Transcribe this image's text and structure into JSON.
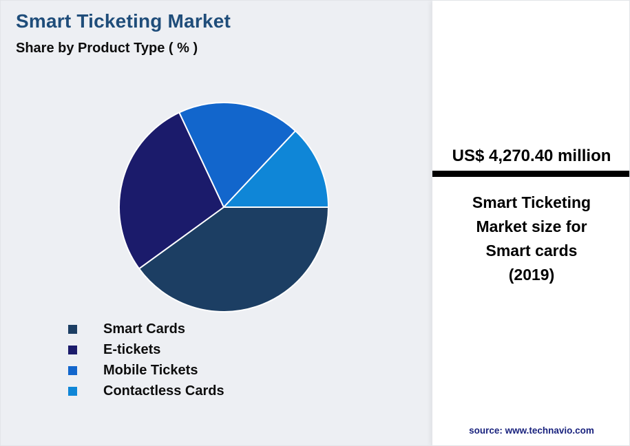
{
  "header": {
    "title": "Smart Ticketing Market",
    "subtitle": "Share by Product Type ( % )"
  },
  "chart_data": {
    "type": "pie",
    "title": "Smart Ticketing Market — Share by Product Type ( % )",
    "categories": [
      "Smart Cards",
      "E-tickets",
      "Mobile Tickets",
      "Contactless Cards"
    ],
    "values": [
      40,
      28,
      19,
      13
    ],
    "colors": [
      "#1c3e63",
      "#1b1b6b",
      "#1266cc",
      "#0f86d7"
    ],
    "start_angle_deg": 0,
    "direction": "clockwise",
    "legend_position": "bottom-left",
    "slice_separator_color": "#ffffff"
  },
  "legend": {
    "items": [
      {
        "label": "Smart Cards",
        "color": "#1c3e63"
      },
      {
        "label": "E-tickets",
        "color": "#1b1b6b"
      },
      {
        "label": "Mobile Tickets",
        "color": "#1266cc"
      },
      {
        "label": "Contactless Cards",
        "color": "#0f86d7"
      }
    ]
  },
  "panel": {
    "headline": "US$ 4,270.40 million",
    "description_lines": [
      "Smart Ticketing",
      "Market size for",
      "Smart cards",
      "(2019)"
    ],
    "source": "source: www.technavio.com"
  },
  "colors": {
    "title_text": "#1f4d7a",
    "background": "#edeff3",
    "panel_background": "#ffffff",
    "divider": "#000000",
    "source_text": "#1a237e"
  }
}
